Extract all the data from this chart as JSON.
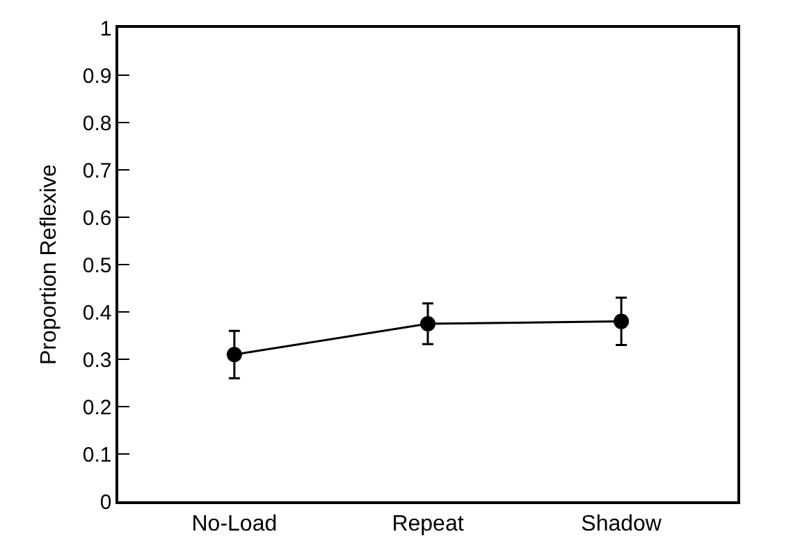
{
  "chart_data": {
    "type": "line",
    "ylabel": "Proportion Reflexive",
    "categories": [
      "No-Load",
      "Repeat",
      "Shadow"
    ],
    "series": [
      {
        "color": "#000000",
        "values": [
          0.31,
          0.375,
          0.38
        ],
        "errors": [
          0.05,
          0.043,
          0.05
        ]
      }
    ],
    "ylim": [
      0,
      1
    ],
    "yticks": [
      0,
      {
        "value": 0.1,
        "label": "0.1"
      },
      {
        "value": 0.2,
        "label": "0.2"
      },
      {
        "value": 0.3,
        "label": "0.3"
      },
      {
        "value": 0.4,
        "label": "0.4"
      },
      {
        "value": 0.5,
        "label": "0.5"
      },
      {
        "value": 0.6,
        "label": "0.6"
      },
      {
        "value": 0.7,
        "label": "0.7"
      },
      {
        "value": 0.8,
        "label": "0.8"
      },
      {
        "value": 0.9,
        "label": "0.9"
      },
      1
    ],
    "marker": "circle",
    "line_style": "solid"
  }
}
